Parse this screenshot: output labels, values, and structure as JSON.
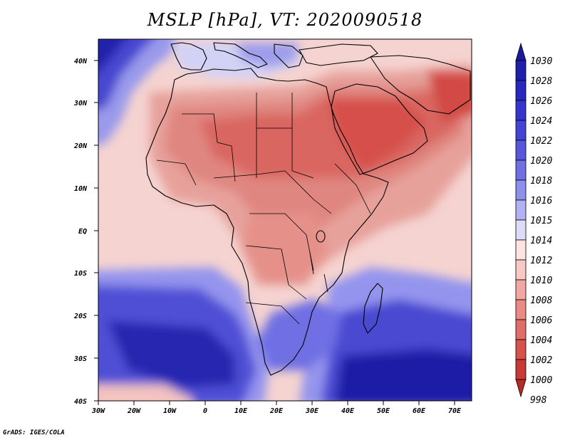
{
  "title": "MSLP [hPa], VT: 2020090518",
  "credit": "GrADS: IGES/COLA",
  "map": {
    "variable": "Mean sea level pressure",
    "units": "hPa",
    "lon_range": [
      -30,
      75
    ],
    "lat_range": [
      -40,
      45
    ],
    "lat_ticks": [
      "40N",
      "30N",
      "20N",
      "10N",
      "EQ",
      "10S",
      "20S",
      "30S",
      "40S"
    ],
    "lon_ticks": [
      "30W",
      "20W",
      "10W",
      "0",
      "10E",
      "20E",
      "30E",
      "40E",
      "50E",
      "60E",
      "70E"
    ],
    "colors": {
      "ocean_high_deep": "#1c1ca6",
      "ocean_high": "#4a4ad2",
      "ocean_mid": "#9494ee",
      "near_normal": "#f3c9c6",
      "land_low": "#e3958e",
      "land_lower": "#dd6f69",
      "low_core": "#d64a46",
      "coastline": "#000000"
    }
  },
  "colorbar": {
    "levels": [
      "1030",
      "1028",
      "1026",
      "1024",
      "1022",
      "1020",
      "1018",
      "1016",
      "1015",
      "1014",
      "1012",
      "1010",
      "1008",
      "1006",
      "1004",
      "1002",
      "1000",
      "998"
    ],
    "colors": [
      "#1a1a9c",
      "#1f1fae",
      "#2828bf",
      "#3535cc",
      "#4444d4",
      "#5757dc",
      "#7070e4",
      "#8f8fec",
      "#b2b2f2",
      "#dcdcf8",
      "#fde4e1",
      "#f8c8c3",
      "#f1a8a2",
      "#e98a84",
      "#e06d67",
      "#d6524d",
      "#c93a36",
      "#b52a27"
    ]
  }
}
